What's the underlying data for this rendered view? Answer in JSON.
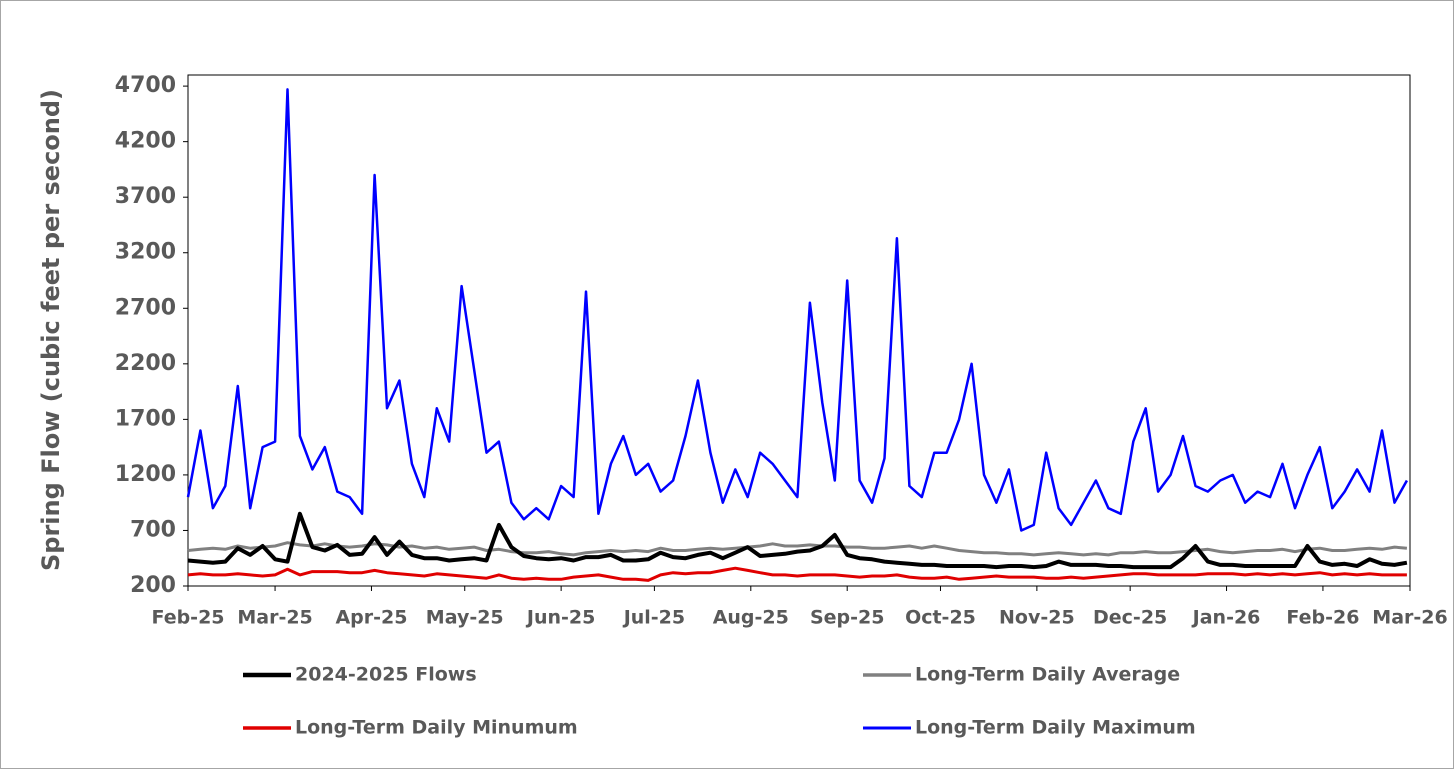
{
  "chart_data": {
    "type": "line",
    "y_label": "Spring Flow (cubic feet per second)",
    "xlim": [
      0,
      393
    ],
    "xticks": [
      {
        "value": 0,
        "label": "Feb-25"
      },
      {
        "value": 28,
        "label": "Mar-25"
      },
      {
        "value": 59,
        "label": "Apr-25"
      },
      {
        "value": 89,
        "label": "May-25"
      },
      {
        "value": 120,
        "label": "Jun-25"
      },
      {
        "value": 150,
        "label": "Jul-25"
      },
      {
        "value": 181,
        "label": "Aug-25"
      },
      {
        "value": 212,
        "label": "Sep-25"
      },
      {
        "value": 242,
        "label": "Oct-25"
      },
      {
        "value": 273,
        "label": "Nov-25"
      },
      {
        "value": 303,
        "label": "Dec-25"
      },
      {
        "value": 334,
        "label": "Jan-26"
      },
      {
        "value": 365,
        "label": "Feb-26"
      },
      {
        "value": 393,
        "label": "Mar-26"
      }
    ],
    "ylim": [
      200,
      4800
    ],
    "yticks": [
      200,
      700,
      1200,
      1700,
      2200,
      2700,
      3200,
      3700,
      4200,
      4700
    ],
    "grid": false,
    "x": [
      0,
      4,
      8,
      12,
      16,
      20,
      24,
      28,
      32,
      36,
      40,
      44,
      48,
      52,
      56,
      60,
      64,
      68,
      72,
      76,
      80,
      84,
      88,
      92,
      96,
      100,
      104,
      108,
      112,
      116,
      120,
      124,
      128,
      132,
      136,
      140,
      144,
      148,
      152,
      156,
      160,
      164,
      168,
      172,
      176,
      180,
      184,
      188,
      192,
      196,
      200,
      204,
      208,
      212,
      216,
      220,
      224,
      228,
      232,
      236,
      240,
      244,
      248,
      252,
      256,
      260,
      264,
      268,
      272,
      276,
      280,
      284,
      288,
      292,
      296,
      300,
      304,
      308,
      312,
      316,
      320,
      324,
      328,
      332,
      336,
      340,
      344,
      348,
      352,
      356,
      360,
      364,
      368,
      372,
      376,
      380,
      384,
      388,
      392
    ],
    "series": [
      {
        "name": "2024-2025 Flows",
        "color": "#000000",
        "width": 4,
        "values": [
          430,
          420,
          410,
          420,
          540,
          480,
          560,
          440,
          420,
          850,
          550,
          520,
          570,
          480,
          490,
          640,
          480,
          600,
          480,
          450,
          450,
          430,
          440,
          450,
          430,
          750,
          550,
          470,
          450,
          440,
          450,
          430,
          460,
          460,
          480,
          430,
          430,
          440,
          500,
          460,
          450,
          480,
          500,
          450,
          500,
          550,
          470,
          480,
          490,
          510,
          520,
          560,
          660,
          480,
          450,
          440,
          420,
          410,
          400,
          390,
          390,
          380,
          380,
          380,
          380,
          370,
          380,
          380,
          370,
          380,
          420,
          390,
          390,
          390,
          380,
          380,
          370,
          370,
          370,
          370,
          450,
          560,
          420,
          390,
          390,
          380,
          380,
          380,
          380,
          380,
          560,
          420,
          390,
          400,
          380,
          440,
          400,
          390,
          410
        ]
      },
      {
        "name": "Long-Term Daily Average",
        "color": "#808080",
        "width": 3,
        "values": [
          520,
          530,
          540,
          530,
          560,
          540,
          550,
          560,
          590,
          570,
          560,
          580,
          560,
          550,
          560,
          580,
          570,
          550,
          560,
          540,
          550,
          530,
          540,
          550,
          520,
          530,
          510,
          500,
          500,
          510,
          490,
          480,
          500,
          510,
          520,
          510,
          520,
          510,
          540,
          520,
          520,
          530,
          540,
          530,
          540,
          550,
          560,
          580,
          560,
          560,
          570,
          560,
          560,
          550,
          550,
          540,
          540,
          550,
          560,
          540,
          560,
          540,
          520,
          510,
          500,
          500,
          490,
          490,
          480,
          490,
          500,
          490,
          480,
          490,
          480,
          500,
          500,
          510,
          500,
          500,
          510,
          520,
          530,
          510,
          500,
          510,
          520,
          520,
          530,
          510,
          530,
          540,
          520,
          520,
          530,
          540,
          530,
          550,
          540
        ]
      },
      {
        "name": "Long-Term Daily Minumum",
        "color": "#e00000",
        "width": 3,
        "values": [
          300,
          310,
          300,
          300,
          310,
          300,
          290,
          300,
          350,
          300,
          330,
          330,
          330,
          320,
          320,
          340,
          320,
          310,
          300,
          290,
          310,
          300,
          290,
          280,
          270,
          300,
          270,
          260,
          270,
          260,
          260,
          280,
          290,
          300,
          280,
          260,
          260,
          250,
          300,
          320,
          310,
          320,
          320,
          340,
          360,
          340,
          320,
          300,
          300,
          290,
          300,
          300,
          300,
          290,
          280,
          290,
          290,
          300,
          280,
          270,
          270,
          280,
          260,
          270,
          280,
          290,
          280,
          280,
          280,
          270,
          270,
          280,
          270,
          280,
          290,
          300,
          310,
          310,
          300,
          300,
          300,
          300,
          310,
          310,
          310,
          300,
          310,
          300,
          310,
          300,
          310,
          320,
          300,
          310,
          300,
          310,
          300,
          300,
          300
        ]
      },
      {
        "name": "Long-Term Daily Maximum",
        "color": "#0000ff",
        "width": 2.5,
        "values": [
          1000,
          1600,
          900,
          1100,
          2000,
          900,
          1450,
          1500,
          4670,
          1550,
          1250,
          1450,
          1050,
          1000,
          850,
          3900,
          1800,
          2050,
          1300,
          1000,
          1800,
          1500,
          2900,
          2150,
          1400,
          1500,
          950,
          800,
          900,
          800,
          1100,
          1000,
          2850,
          850,
          1300,
          1550,
          1200,
          1300,
          1050,
          1150,
          1550,
          2050,
          1400,
          950,
          1250,
          1000,
          1400,
          1300,
          1150,
          1000,
          2750,
          1850,
          1150,
          2950,
          1150,
          950,
          1350,
          3330,
          1100,
          1000,
          1400,
          1400,
          1700,
          2200,
          1200,
          950,
          1250,
          700,
          750,
          1400,
          900,
          750,
          950,
          1150,
          900,
          850,
          1500,
          1800,
          1050,
          1200,
          1550,
          1100,
          1050,
          1150,
          1200,
          950,
          1050,
          1000,
          1300,
          900,
          1200,
          1450,
          900,
          1050,
          1250,
          1050,
          1600,
          950,
          1150
        ]
      }
    ]
  }
}
